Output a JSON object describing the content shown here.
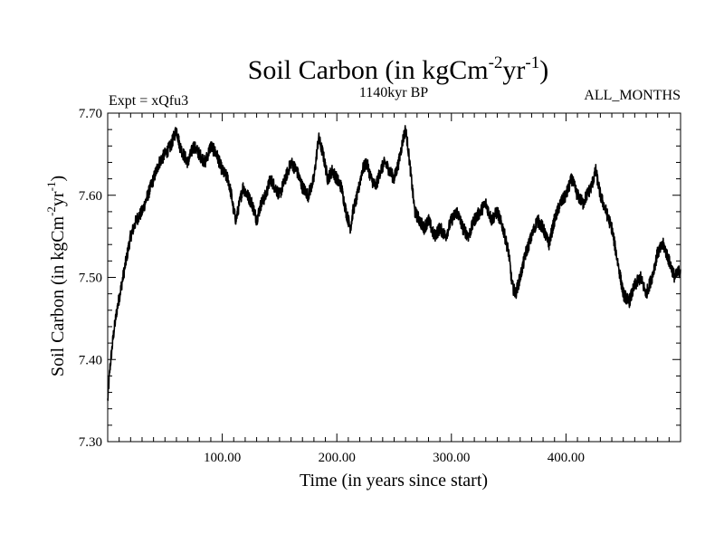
{
  "chart_data": {
    "type": "line",
    "title": {
      "main": "Soil Carbon (in kgCm",
      "sup1": "-2",
      "mid": "yr",
      "sup2": "-1",
      "end": ")"
    },
    "subtitle_left": "Expt = xQfu3",
    "subtitle_center": "1140kyr BP",
    "subtitle_right": "ALL_MONTHS",
    "xlabel": "Time (in years since start)",
    "ylabel": {
      "main": "Soil Carbon (in kgCm",
      "sup1": "-2",
      "mid": "yr",
      "sup2": "-1",
      "end": ")"
    },
    "xlim": [
      0,
      500
    ],
    "ylim": [
      7.3,
      7.7
    ],
    "x_tick_values": [
      100,
      200,
      300,
      400
    ],
    "x_tick_labels": [
      "100.00",
      "200.00",
      "300.00",
      "400.00"
    ],
    "y_tick_values": [
      7.3,
      7.4,
      7.5,
      7.6,
      7.7
    ],
    "y_tick_labels": [
      "7.30",
      "7.40",
      "7.50",
      "7.60",
      "7.70"
    ],
    "series": [
      {
        "name": "Soil Carbon",
        "color": "#000000",
        "x": [
          0,
          2,
          5,
          8,
          12,
          16,
          20,
          25,
          30,
          35,
          40,
          45,
          50,
          55,
          60,
          63,
          66,
          70,
          75,
          80,
          85,
          90,
          95,
          100,
          105,
          108,
          110,
          112,
          115,
          118,
          122,
          126,
          130,
          134,
          138,
          142,
          146,
          150,
          155,
          160,
          165,
          170,
          175,
          180,
          184,
          188,
          192,
          196,
          200,
          204,
          208,
          212,
          214,
          218,
          222,
          226,
          230,
          234,
          238,
          242,
          246,
          250,
          254,
          258,
          260,
          262,
          265,
          268,
          272,
          276,
          280,
          285,
          290,
          295,
          300,
          305,
          310,
          315,
          320,
          325,
          330,
          335,
          340,
          345,
          350,
          353,
          356,
          360,
          365,
          370,
          375,
          380,
          385,
          390,
          395,
          400,
          405,
          410,
          415,
          418,
          422,
          426,
          430,
          435,
          440,
          445,
          450,
          455,
          460,
          465,
          470,
          475,
          480,
          485,
          490,
          495,
          500
        ],
        "y": [
          7.35,
          7.39,
          7.43,
          7.46,
          7.49,
          7.52,
          7.55,
          7.57,
          7.58,
          7.6,
          7.62,
          7.64,
          7.65,
          7.66,
          7.68,
          7.66,
          7.65,
          7.64,
          7.66,
          7.65,
          7.64,
          7.66,
          7.65,
          7.63,
          7.62,
          7.6,
          7.58,
          7.57,
          7.59,
          7.61,
          7.6,
          7.59,
          7.57,
          7.59,
          7.6,
          7.62,
          7.61,
          7.6,
          7.62,
          7.64,
          7.63,
          7.61,
          7.6,
          7.62,
          7.67,
          7.65,
          7.62,
          7.63,
          7.62,
          7.61,
          7.58,
          7.56,
          7.58,
          7.6,
          7.63,
          7.64,
          7.62,
          7.61,
          7.63,
          7.64,
          7.63,
          7.62,
          7.64,
          7.67,
          7.68,
          7.66,
          7.62,
          7.58,
          7.57,
          7.56,
          7.57,
          7.55,
          7.56,
          7.55,
          7.57,
          7.58,
          7.56,
          7.55,
          7.57,
          7.58,
          7.59,
          7.57,
          7.58,
          7.56,
          7.53,
          7.49,
          7.48,
          7.5,
          7.53,
          7.55,
          7.57,
          7.56,
          7.54,
          7.57,
          7.59,
          7.6,
          7.62,
          7.6,
          7.59,
          7.6,
          7.61,
          7.63,
          7.6,
          7.58,
          7.56,
          7.52,
          7.48,
          7.47,
          7.49,
          7.5,
          7.48,
          7.5,
          7.53,
          7.54,
          7.52,
          7.5,
          7.51
        ]
      }
    ]
  }
}
